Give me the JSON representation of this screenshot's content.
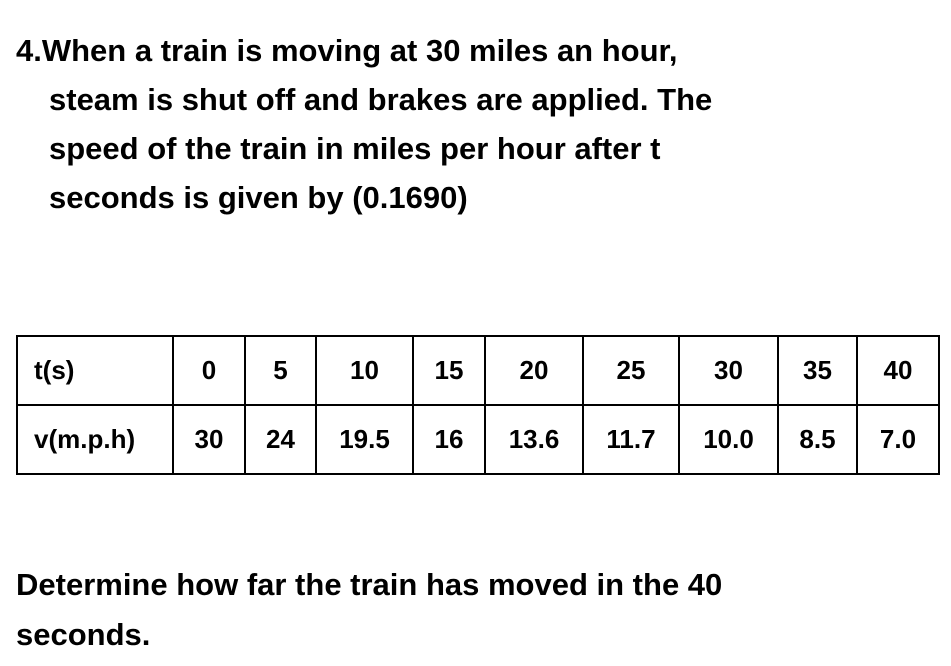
{
  "question": {
    "lines": [
      "4.When a train is moving at 30 miles an hour,",
      "steam is shut off and brakes are applied. The",
      "speed of the train in miles per hour after t",
      "seconds is given by (0.1690)"
    ]
  },
  "table": {
    "rows": [
      {
        "header": "t(s)",
        "cells": [
          "0",
          "5",
          "10",
          "15",
          "20",
          "25",
          "30",
          "35",
          "40"
        ]
      },
      {
        "header": "v(m.p.h)",
        "cells": [
          "30",
          "24",
          "19.5",
          "16",
          "13.6",
          "11.7",
          "10.0",
          "8.5",
          "7.0"
        ]
      }
    ]
  },
  "prompt": {
    "lines": [
      "Determine how far the train has moved in the 40",
      "seconds."
    ]
  }
}
